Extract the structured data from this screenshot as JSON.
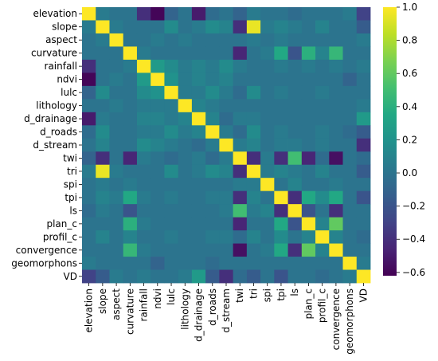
{
  "chart_data": {
    "type": "heatmap",
    "title": "",
    "xlabel": "",
    "ylabel": "",
    "variables": [
      "elevation",
      "slope",
      "aspect",
      "curvature",
      "rainfall",
      "ndvi",
      "lulc",
      "lithology",
      "d_drainage",
      "d_roads",
      "d_stream",
      "twi",
      "tri",
      "spi",
      "tpi",
      "ls",
      "plan_c",
      "profil_c",
      "convergence",
      "geomorphons",
      "VD"
    ],
    "matrix": [
      [
        1.0,
        0.05,
        0.0,
        0.0,
        -0.4,
        -0.6,
        -0.1,
        0.0,
        -0.5,
        -0.05,
        0.0,
        -0.1,
        0.05,
        0.0,
        0.0,
        -0.05,
        0.0,
        0.0,
        0.0,
        0.05,
        -0.3
      ],
      [
        0.05,
        1.0,
        0.05,
        0.0,
        0.0,
        0.0,
        0.15,
        0.0,
        0.05,
        0.15,
        0.1,
        -0.4,
        0.95,
        0.05,
        0.1,
        0.05,
        0.0,
        0.1,
        0.0,
        0.0,
        -0.15
      ],
      [
        0.0,
        0.05,
        1.0,
        0.0,
        0.0,
        0.05,
        0.0,
        0.05,
        0.0,
        0.0,
        0.0,
        0.0,
        0.05,
        0.0,
        0.05,
        0.0,
        0.0,
        0.0,
        0.0,
        0.0,
        0.05
      ],
      [
        0.0,
        0.0,
        0.0,
        1.0,
        0.05,
        0.0,
        0.0,
        0.0,
        0.0,
        0.0,
        0.0,
        -0.45,
        0.0,
        0.05,
        0.35,
        -0.2,
        0.4,
        0.1,
        0.45,
        0.0,
        0.0
      ],
      [
        -0.4,
        0.0,
        0.0,
        0.05,
        1.0,
        0.25,
        0.15,
        0.05,
        0.1,
        0.05,
        0.15,
        0.05,
        0.0,
        0.0,
        0.05,
        0.0,
        0.05,
        0.0,
        0.05,
        0.0,
        0.05
      ],
      [
        -0.6,
        0.0,
        0.05,
        0.0,
        0.25,
        1.0,
        0.2,
        0.05,
        0.1,
        0.05,
        0.1,
        0.0,
        0.0,
        0.0,
        0.0,
        0.0,
        0.0,
        0.0,
        0.0,
        -0.1,
        0.0
      ],
      [
        -0.1,
        0.15,
        0.0,
        0.0,
        0.15,
        0.2,
        1.0,
        0.05,
        0.05,
        0.15,
        0.05,
        -0.05,
        0.15,
        0.0,
        0.05,
        0.0,
        0.0,
        0.05,
        0.0,
        0.0,
        0.0
      ],
      [
        0.0,
        0.0,
        0.05,
        0.0,
        0.05,
        0.05,
        0.05,
        1.0,
        0.1,
        0.05,
        0.0,
        0.0,
        0.0,
        0.0,
        0.0,
        0.0,
        0.0,
        0.0,
        0.0,
        0.0,
        0.05
      ],
      [
        -0.5,
        0.05,
        0.0,
        0.0,
        0.1,
        0.1,
        0.05,
        0.1,
        1.0,
        0.1,
        -0.05,
        0.05,
        0.05,
        0.0,
        0.0,
        0.0,
        0.0,
        0.0,
        0.0,
        0.0,
        0.25
      ],
      [
        -0.05,
        0.15,
        0.0,
        0.0,
        0.05,
        0.05,
        0.15,
        0.05,
        0.1,
        1.0,
        0.05,
        -0.05,
        0.15,
        0.0,
        0.05,
        0.0,
        0.0,
        0.05,
        0.0,
        -0.05,
        -0.15
      ],
      [
        0.0,
        0.1,
        0.0,
        0.0,
        0.15,
        0.1,
        0.05,
        0.0,
        -0.05,
        0.05,
        1.0,
        0.05,
        0.1,
        0.0,
        0.05,
        0.05,
        0.0,
        0.05,
        0.0,
        0.0,
        -0.4
      ],
      [
        -0.1,
        -0.4,
        0.0,
        -0.45,
        0.05,
        0.0,
        -0.05,
        0.0,
        0.05,
        -0.05,
        0.05,
        1.0,
        -0.4,
        0.05,
        -0.4,
        0.5,
        -0.45,
        -0.05,
        -0.55,
        0.0,
        -0.05
      ],
      [
        0.05,
        0.95,
        0.05,
        0.0,
        0.0,
        0.0,
        0.15,
        0.0,
        0.05,
        0.15,
        0.1,
        -0.4,
        1.0,
        0.05,
        0.1,
        0.05,
        0.0,
        0.1,
        0.0,
        0.0,
        -0.15
      ],
      [
        0.0,
        0.05,
        0.0,
        0.05,
        0.0,
        0.0,
        0.0,
        0.0,
        0.0,
        0.0,
        0.0,
        0.05,
        0.05,
        1.0,
        0.0,
        0.1,
        0.0,
        0.0,
        0.05,
        0.0,
        0.0
      ],
      [
        0.0,
        0.1,
        0.05,
        0.35,
        0.05,
        0.0,
        0.05,
        0.0,
        0.0,
        0.05,
        0.05,
        -0.4,
        0.1,
        0.0,
        1.0,
        -0.4,
        0.35,
        0.15,
        0.35,
        0.0,
        -0.2
      ],
      [
        -0.05,
        0.05,
        0.0,
        -0.2,
        0.0,
        0.0,
        0.0,
        0.0,
        0.0,
        0.0,
        0.05,
        0.5,
        0.05,
        0.1,
        -0.4,
        1.0,
        -0.2,
        0.0,
        -0.4,
        0.0,
        0.0
      ],
      [
        0.0,
        0.0,
        0.0,
        0.4,
        0.05,
        0.0,
        0.0,
        0.0,
        0.0,
        0.0,
        0.0,
        -0.45,
        0.0,
        0.0,
        0.35,
        -0.2,
        1.0,
        0.1,
        0.6,
        0.0,
        0.0
      ],
      [
        0.0,
        0.1,
        0.0,
        0.1,
        0.0,
        0.0,
        0.05,
        0.0,
        0.0,
        0.05,
        0.05,
        -0.05,
        0.1,
        0.0,
        0.15,
        0.0,
        0.1,
        1.0,
        0.1,
        0.0,
        -0.05
      ],
      [
        0.0,
        0.0,
        0.0,
        0.45,
        0.05,
        0.0,
        0.0,
        0.0,
        0.0,
        0.0,
        0.0,
        -0.55,
        0.0,
        0.05,
        0.35,
        -0.4,
        0.6,
        0.1,
        1.0,
        0.0,
        0.0
      ],
      [
        0.05,
        0.0,
        0.0,
        0.0,
        0.0,
        -0.1,
        0.0,
        0.0,
        0.0,
        -0.05,
        0.0,
        0.0,
        0.0,
        0.0,
        0.0,
        0.0,
        0.0,
        0.0,
        0.0,
        1.0,
        0.05
      ],
      [
        -0.3,
        -0.15,
        0.05,
        0.0,
        0.05,
        0.0,
        0.0,
        0.05,
        0.25,
        -0.15,
        -0.4,
        -0.05,
        -0.15,
        0.0,
        -0.2,
        0.0,
        0.0,
        -0.05,
        0.0,
        0.05,
        1.0
      ]
    ],
    "colorbar": {
      "colormap": "viridis",
      "min": -0.62,
      "max": 1.0,
      "ticks": [
        1.0,
        0.8,
        0.6,
        0.4,
        0.2,
        0.0,
        -0.2,
        -0.4,
        -0.6
      ],
      "tick_labels": [
        "1.0",
        "0.8",
        "0.6",
        "0.4",
        "0.2",
        "0.0",
        "−0.2",
        "−0.4",
        "−0.6"
      ]
    }
  }
}
